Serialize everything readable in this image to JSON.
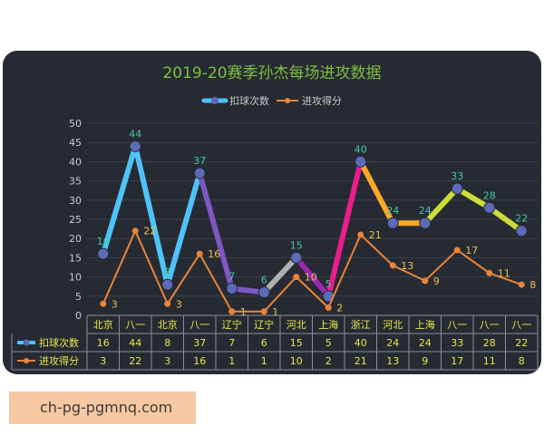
{
  "chart_data": {
    "type": "line",
    "title": "2019-20赛季孙杰每场进攻数据",
    "categories": [
      "北京",
      "八一",
      "北京",
      "八一",
      "辽宁",
      "辽宁",
      "河北",
      "上海",
      "浙江",
      "河北",
      "上海",
      "八一",
      "八一",
      "八一"
    ],
    "series": [
      {
        "name": "扣球次数",
        "values": [
          16,
          44,
          8,
          37,
          7,
          6,
          15,
          5,
          40,
          24,
          24,
          33,
          28,
          22
        ]
      },
      {
        "name": "进攻得分",
        "values": [
          3,
          22,
          3,
          16,
          1,
          1,
          10,
          2,
          21,
          13,
          9,
          17,
          11,
          8
        ]
      }
    ],
    "ylim": [
      0,
      50
    ],
    "yticks": [
      0,
      5,
      10,
      15,
      20,
      25,
      30,
      35,
      40,
      45,
      50
    ],
    "legend": "top",
    "data_table": true,
    "colors": {
      "background": "#262a33",
      "title": "#7fbf3f",
      "table_text": "#e8e84a",
      "axis_text": "#c9c9c9",
      "score_line": "#e8863a",
      "spike_segments": [
        "#4fc3f7",
        "#4fc3f7",
        "#4fc3f7",
        "#7e57c2",
        "#7e57c2",
        "#b0b0b0",
        "#9c27b0",
        "#e91e8c",
        "#ffa726",
        "#ffa726",
        "#cddc39",
        "#cddc39",
        "#cddc39"
      ]
    }
  },
  "watermark": "ch-pg-pgmnq.com"
}
